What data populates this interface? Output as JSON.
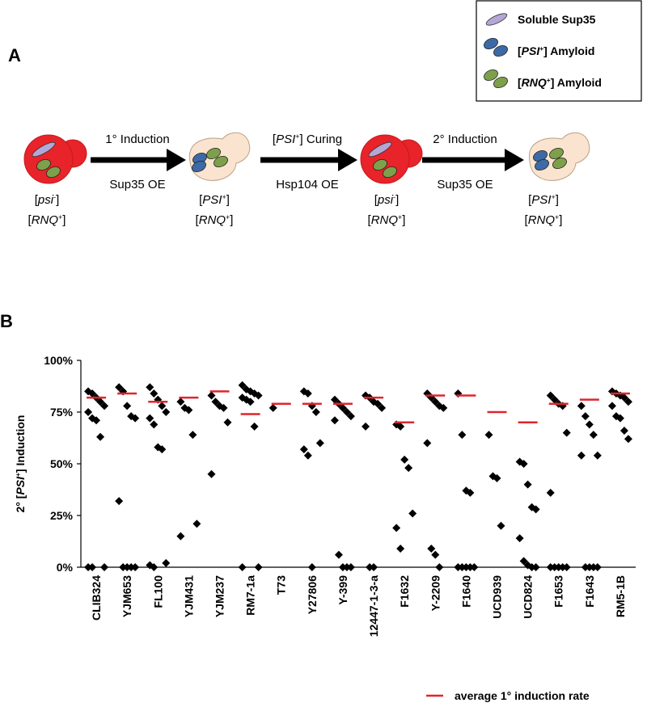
{
  "diagram": {
    "label": "A",
    "legend": [
      [
        "Soluble Sup35"
      ],
      [
        "[",
        "PSI",
        "+",
        "] Amyloid"
      ],
      [
        "[",
        "RNQ",
        "+",
        "] Amyloid"
      ]
    ],
    "steps": [
      {
        "top": [
          "1° Induction"
        ],
        "bottom": "Sup35 OE"
      },
      {
        "top": [
          "[",
          "PSI",
          "+",
          "] Curing"
        ],
        "bottom": "Hsp104 OE"
      },
      {
        "top": [
          "2° Induction"
        ],
        "bottom": "Sup35 OE"
      }
    ],
    "cells": [
      {
        "line1": [
          "[",
          "psi",
          "-",
          "]"
        ],
        "line2": [
          "[",
          "RNQ",
          "+",
          "]"
        ]
      },
      {
        "line1": [
          "[",
          "PSI",
          "+",
          "]"
        ],
        "line2": [
          "[",
          "RNQ",
          "+",
          "]"
        ]
      },
      {
        "line1": [
          "[",
          "psi",
          "-",
          "]"
        ],
        "line2": [
          "[",
          "RNQ",
          "+",
          "]"
        ]
      },
      {
        "line1": [
          "[",
          "PSI",
          "+",
          "]"
        ],
        "line2": [
          "[",
          "RNQ",
          "+",
          "]"
        ]
      }
    ]
  },
  "chart_data": {
    "type": "scatter",
    "label": "B",
    "y_label": [
      "2° [",
      "PSI",
      "+",
      "] Induction"
    ],
    "categories": [
      "CLIB324",
      "YJM653",
      "FL100",
      "YJM431",
      "YJM237",
      "RM7-1a",
      "T73",
      "Y27806",
      "Y-399",
      "12447-1-3-a",
      "F1632",
      "Y-2209",
      "F1640",
      "UCD939",
      "UCD824",
      "F1653",
      "F1643",
      "RM5-1B"
    ],
    "points": [
      [
        85,
        84,
        82,
        80,
        78,
        75,
        72,
        71,
        63,
        0,
        0,
        0
      ],
      [
        87,
        85,
        78,
        73,
        72,
        32,
        0,
        0,
        0,
        0
      ],
      [
        87,
        84,
        81,
        78,
        75,
        72,
        69,
        58,
        57,
        2,
        1,
        0
      ],
      [
        80,
        77,
        76,
        64,
        21,
        15
      ],
      [
        83,
        80,
        78,
        77,
        70,
        45
      ],
      [
        88,
        86,
        85,
        84,
        83,
        82,
        81,
        80,
        68,
        0,
        0
      ],
      [
        77
      ],
      [
        85,
        84,
        78,
        75,
        60,
        57,
        54,
        0
      ],
      [
        81,
        79,
        77,
        75,
        73,
        71,
        6,
        0,
        0,
        0
      ],
      [
        83,
        82,
        80,
        79,
        77,
        68,
        0,
        0
      ],
      [
        69,
        68,
        52,
        48,
        26,
        19,
        9
      ],
      [
        84,
        82,
        80,
        78,
        77,
        60,
        9,
        6,
        0
      ],
      [
        84,
        64,
        37,
        36,
        0,
        0,
        0,
        0,
        0
      ],
      [
        64,
        44,
        43,
        20
      ],
      [
        51,
        50,
        40,
        29,
        28,
        14,
        3,
        1,
        0,
        0
      ],
      [
        83,
        81,
        79,
        78,
        65,
        36,
        0,
        0,
        0,
        0,
        0
      ],
      [
        78,
        73,
        69,
        64,
        54,
        54,
        0,
        0,
        0,
        0
      ],
      [
        85,
        84,
        83,
        82,
        80,
        78,
        73,
        72,
        66,
        62
      ]
    ],
    "point_color": "#000000",
    "average": {
      "name": "average 1° induction rate",
      "color": "#e0242c",
      "values": [
        82,
        84,
        80,
        82,
        85,
        74,
        79,
        79,
        79,
        82,
        70,
        83,
        83,
        75,
        70,
        79,
        81,
        84
      ]
    },
    "ylim": [
      0,
      100
    ],
    "yticks": [
      {
        "value": 0,
        "label": "0%"
      },
      {
        "value": 25,
        "label": "25%"
      },
      {
        "value": 50,
        "label": "50%"
      },
      {
        "value": 75,
        "label": "75%"
      },
      {
        "value": 100,
        "label": "100%"
      }
    ]
  }
}
